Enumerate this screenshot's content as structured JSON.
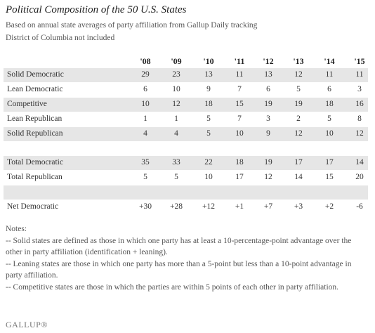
{
  "title": "Political Composition of the 50 U.S. States",
  "subtitle_lines": [
    "Based on annual state averages of party affiliation from Gallup Daily tracking",
    "District of Columbia not included"
  ],
  "table": {
    "years": [
      "'08",
      "'09",
      "'10",
      "'11",
      "'12",
      "'13",
      "'14",
      "'15"
    ],
    "rows": [
      {
        "label": "Solid Democratic",
        "values": [
          "29",
          "23",
          "13",
          "11",
          "13",
          "12",
          "11",
          "11"
        ]
      },
      {
        "label": "Lean Democratic",
        "values": [
          "6",
          "10",
          "9",
          "7",
          "6",
          "5",
          "6",
          "3"
        ]
      },
      {
        "label": "Competitive",
        "values": [
          "10",
          "12",
          "18",
          "15",
          "19",
          "19",
          "18",
          "16"
        ]
      },
      {
        "label": "Lean Republican",
        "values": [
          "1",
          "1",
          "5",
          "7",
          "3",
          "2",
          "5",
          "8"
        ]
      },
      {
        "label": "Solid Republican",
        "values": [
          "4",
          "4",
          "5",
          "10",
          "9",
          "12",
          "10",
          "12"
        ]
      },
      {
        "label": "",
        "values": [
          "",
          "",
          "",
          "",
          "",
          "",
          "",
          ""
        ]
      },
      {
        "label": "Total Democratic",
        "values": [
          "35",
          "33",
          "22",
          "18",
          "19",
          "17",
          "17",
          "14"
        ]
      },
      {
        "label": "Total Republican",
        "values": [
          "5",
          "5",
          "10",
          "17",
          "12",
          "14",
          "15",
          "20"
        ]
      },
      {
        "label": "",
        "values": [
          "",
          "",
          "",
          "",
          "",
          "",
          "",
          ""
        ]
      },
      {
        "label": "Net Democratic",
        "values": [
          "+30",
          "+28",
          "+12",
          "+1",
          "+7",
          "+3",
          "+2",
          "-6"
        ]
      }
    ]
  },
  "notes": [
    "Notes:",
    "-- Solid states are defined as those in which one party has at least a 10-percentage-point advantage over the other in party affiliation (identification + leaning).",
    "-- Leaning states are those in which one party has more than a 5-point but less than a 10-point advantage in party affiliation.",
    "-- Competitive states are those in which the parties are within 5 points of each other in party affiliation."
  ],
  "logo": "GALLUP®"
}
